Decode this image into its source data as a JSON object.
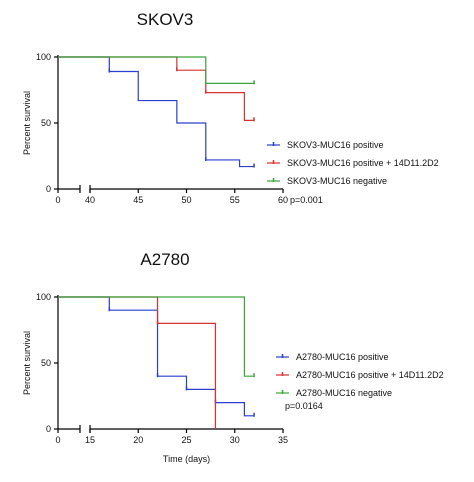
{
  "chart_data": [
    {
      "type": "line",
      "subtype": "kaplan-meier",
      "title": "SKOV3",
      "xlabel": "",
      "ylabel": "Percent survival",
      "x_break": {
        "before": [
          0
        ],
        "after_range": [
          40,
          60
        ]
      },
      "xticks": [
        0,
        40,
        45,
        50,
        55,
        60
      ],
      "yticks": [
        0,
        50,
        100
      ],
      "ylim": [
        0,
        100
      ],
      "legend": "right",
      "p_value": "p=0.001",
      "series": [
        {
          "name": "SKOV3-MUC16 positive",
          "color": "#2b3fcf",
          "steps": [
            [
              0,
              100
            ],
            [
              42,
              89
            ],
            [
              45,
              67
            ],
            [
              49,
              50
            ],
            [
              52,
              22
            ],
            [
              55.5,
              17
            ],
            [
              57,
              17
            ]
          ],
          "censor": [
            [
              42,
              89
            ],
            [
              52,
              22
            ],
            [
              57,
              17
            ]
          ]
        },
        {
          "name": "SKOV3-MUC16 positive + 14D11.2D2",
          "color": "#d93030",
          "steps": [
            [
              0,
              100
            ],
            [
              49,
              90
            ],
            [
              52,
              73
            ],
            [
              56,
              52
            ],
            [
              57,
              52
            ]
          ],
          "censor": [
            [
              49,
              90
            ],
            [
              52,
              73
            ],
            [
              57,
              52
            ]
          ]
        },
        {
          "name": "SKOV3-MUC16 negative",
          "color": "#3aa53a",
          "steps": [
            [
              0,
              100
            ],
            [
              52,
              80
            ],
            [
              57,
              80
            ]
          ],
          "censor": [
            [
              57,
              80
            ]
          ]
        }
      ]
    },
    {
      "type": "line",
      "subtype": "kaplan-meier",
      "title": "A2780",
      "xlabel": "Time (days)",
      "ylabel": "Percent survival",
      "x_break": {
        "before": [
          0
        ],
        "after_range": [
          15,
          35
        ]
      },
      "xticks": [
        0,
        15,
        20,
        25,
        30,
        35
      ],
      "yticks": [
        0,
        50,
        100
      ],
      "ylim": [
        0,
        100
      ],
      "legend": "right",
      "p_value": "p=0.0164",
      "series": [
        {
          "name": "A2780-MUC16 positive",
          "color": "#2b3fcf",
          "steps": [
            [
              0,
              100
            ],
            [
              17,
              90
            ],
            [
              22,
              40
            ],
            [
              25,
              30
            ],
            [
              28,
              20
            ],
            [
              31,
              10
            ],
            [
              32,
              10
            ]
          ],
          "censor": [
            [
              17,
              90
            ],
            [
              22,
              40
            ],
            [
              25,
              30
            ],
            [
              28,
              20
            ],
            [
              32,
              10
            ]
          ]
        },
        {
          "name": "A2780-MUC16 positive + 14D11.2D2",
          "color": "#d93030",
          "steps": [
            [
              0,
              100
            ],
            [
              22,
              80
            ],
            [
              28,
              0
            ]
          ],
          "censor": [
            [
              22,
              80
            ]
          ]
        },
        {
          "name": "A2780-MUC16 negative",
          "color": "#3aa53a",
          "steps": [
            [
              0,
              100
            ],
            [
              31,
              40
            ],
            [
              32,
              40
            ]
          ],
          "censor": [
            [
              32,
              40
            ]
          ]
        }
      ]
    }
  ]
}
